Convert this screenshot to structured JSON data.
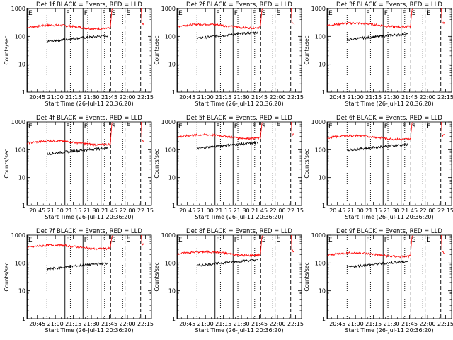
{
  "figure": {
    "start_time_label": "Start Time (26-Jul-11 20:36:20)",
    "ylabel": "Counts/sec"
  },
  "colors": {
    "events": "#000000",
    "lld": "#ff0000",
    "axes": "#000000"
  },
  "chart_data": {
    "type": "line",
    "y_scale": "log",
    "ylim": [
      1,
      1000
    ],
    "y_ticks": [
      "1",
      "10",
      "100",
      "1000"
    ],
    "x_ticks": [
      "20:45",
      "21:00",
      "21:15",
      "21:30",
      "21:45",
      "22:00",
      "22:15"
    ],
    "x_tick_minutes": [
      45,
      60,
      75,
      90,
      105,
      120,
      135
    ],
    "x_range_minutes": [
      36.33,
      140
    ],
    "markers": [
      {
        "label": "E",
        "minute": 36.6,
        "style": "solid"
      },
      {
        "label": "",
        "minute": 53,
        "style": "dotted"
      },
      {
        "label": "F",
        "minute": 68,
        "style": "solid"
      },
      {
        "label": "",
        "minute": 72.5,
        "style": "dotted"
      },
      {
        "label": "F",
        "minute": 83,
        "style": "solid"
      },
      {
        "label": "",
        "minute": 87,
        "style": "dotted"
      },
      {
        "label": "F",
        "minute": 98,
        "style": "solid"
      },
      {
        "label": "",
        "minute": 101,
        "style": "dotted"
      },
      {
        "label": "S",
        "minute": 106,
        "style": "dashed"
      },
      {
        "label": "",
        "minute": 116,
        "style": "dotted"
      },
      {
        "label": "E",
        "minute": 118,
        "style": "dashed"
      },
      {
        "label": "",
        "minute": 131,
        "style": "dashed"
      }
    ],
    "panels": [
      {
        "title": "Det 1f BLACK = Events, RED = LLD",
        "lld_level": 220,
        "events_level": 65,
        "events_start": 53,
        "lld_start": 36.6
      },
      {
        "title": "Det 2f BLACK = Events, RED = LLD",
        "lld_level": 240,
        "events_level": 85,
        "events_start": 53,
        "lld_start": 36.6
      },
      {
        "title": "Det 3f BLACK = Events, RED = LLD",
        "lld_level": 260,
        "events_level": 75,
        "events_start": 53,
        "lld_start": 36.6
      },
      {
        "title": "Det 4f BLACK = Events, RED = LLD",
        "lld_level": 180,
        "events_level": 70,
        "events_start": 53,
        "lld_start": 36.6
      },
      {
        "title": "Det 5f BLACK = Events, RED = LLD",
        "lld_level": 300,
        "events_level": 110,
        "events_start": 53,
        "lld_start": 36.6
      },
      {
        "title": "Det 6f BLACK = Events, RED = LLD",
        "lld_level": 280,
        "events_level": 95,
        "events_start": 53,
        "lld_start": 36.6
      },
      {
        "title": "Det 7f BLACK = Events, RED = LLD",
        "lld_level": 380,
        "events_level": 60,
        "events_start": 53,
        "lld_start": 36.6
      },
      {
        "title": "Det 8f BLACK = Events, RED = LLD",
        "lld_level": 220,
        "events_level": 80,
        "events_start": 53,
        "lld_start": 36.6
      },
      {
        "title": "Det 9f BLACK = Events, RED = LLD",
        "lld_level": 200,
        "events_level": 70,
        "events_start": 53,
        "lld_start": 36.6
      }
    ]
  }
}
